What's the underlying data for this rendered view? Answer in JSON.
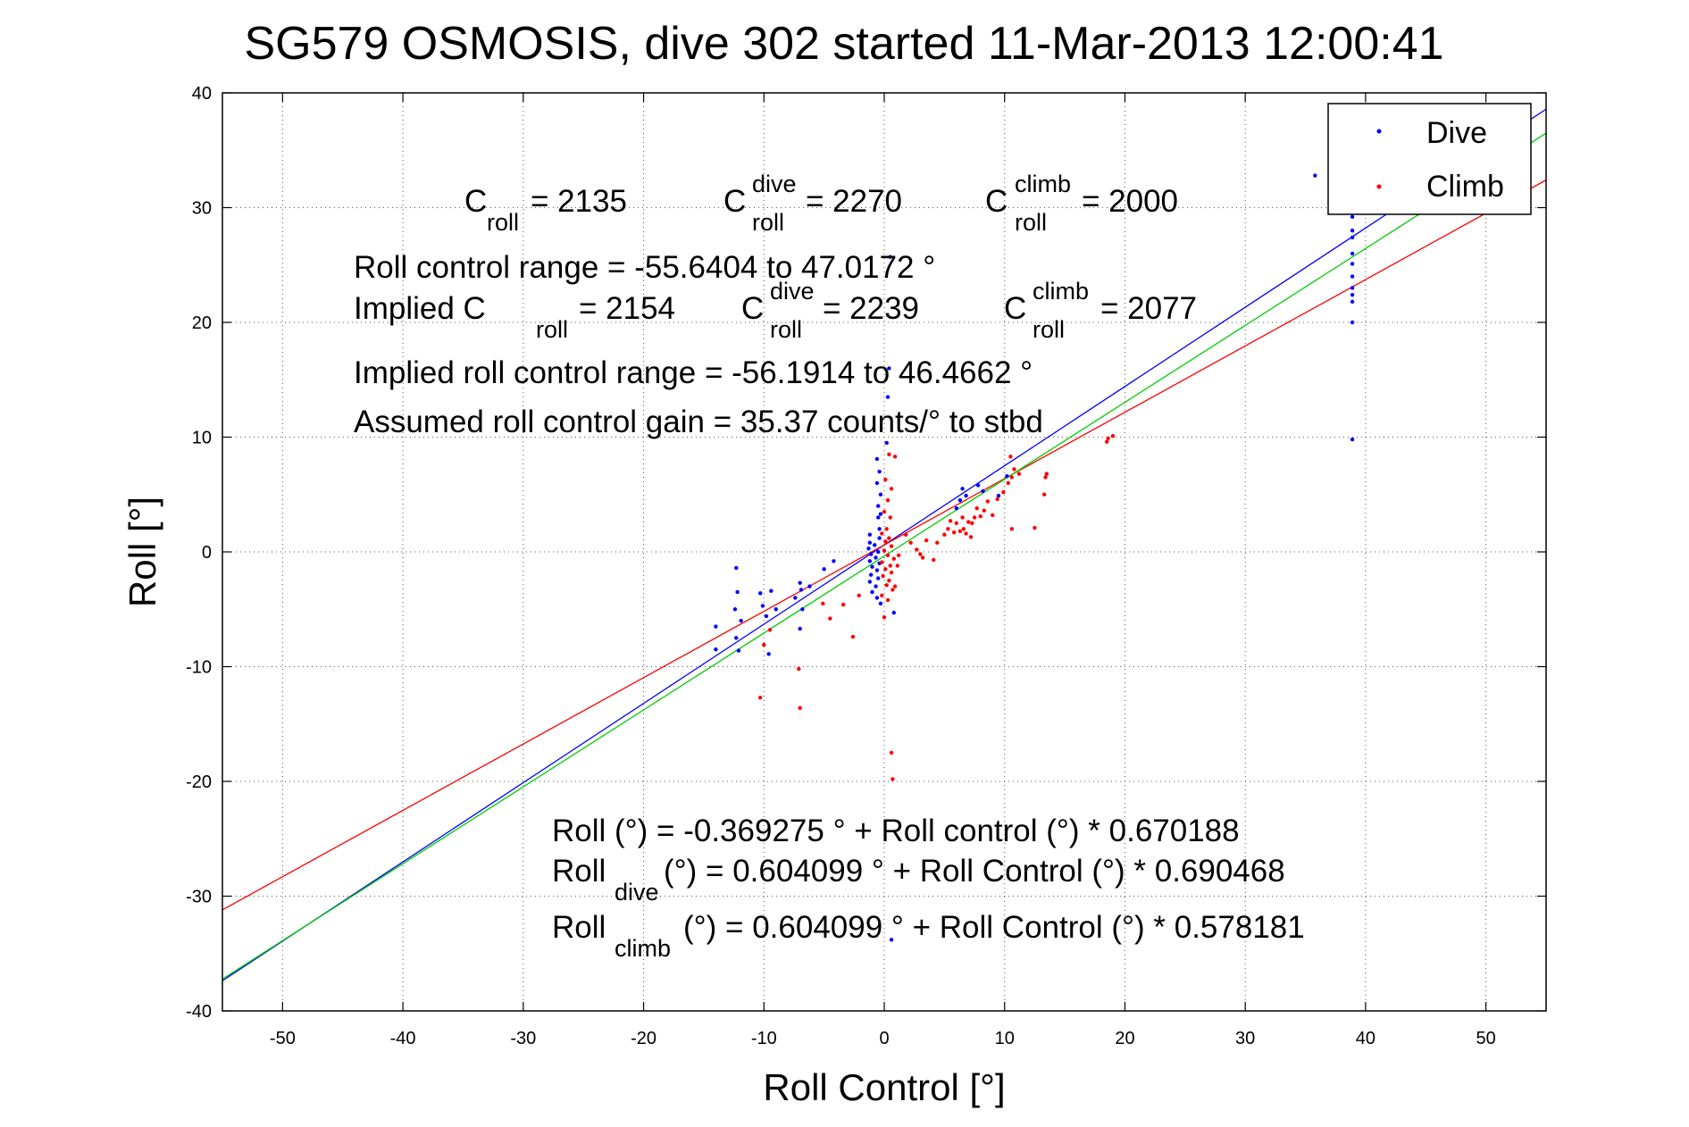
{
  "chart_data": {
    "type": "scatter",
    "title": "SG579 OSMOSIS, dive 302 started 11-Mar-2013 12:00:41",
    "xlabel": "Roll Control [°]",
    "ylabel": "Roll [°]",
    "xlim": [
      -55,
      55
    ],
    "ylim": [
      -40,
      40
    ],
    "xticks": [
      -50,
      -40,
      -30,
      -20,
      -10,
      0,
      10,
      20,
      30,
      40,
      50
    ],
    "yticks": [
      -40,
      -30,
      -20,
      -10,
      0,
      10,
      20,
      30,
      40
    ],
    "grid": "dotted",
    "legend_placement": "top-right",
    "legend": [
      {
        "label": "Dive",
        "color": "#0000ff"
      },
      {
        "label": "Climb",
        "color": "#ff0000"
      }
    ],
    "series": [
      {
        "name": "Dive",
        "color": "#0000ff",
        "points": [
          [
            35.8,
            32.8
          ],
          [
            38.9,
            29.2
          ],
          [
            38.9,
            28.0
          ],
          [
            38.9,
            27.4
          ],
          [
            38.9,
            26.0
          ],
          [
            38.9,
            25.1
          ],
          [
            38.9,
            24.0
          ],
          [
            38.9,
            23.0
          ],
          [
            38.9,
            22.4
          ],
          [
            38.9,
            21.8
          ],
          [
            38.9,
            20.0
          ],
          [
            38.9,
            9.8
          ],
          [
            0.5,
            25.7
          ],
          [
            0.4,
            16.0
          ],
          [
            0.3,
            13.5
          ],
          [
            0.2,
            9.5
          ],
          [
            -0.6,
            8.1
          ],
          [
            -0.4,
            7.0
          ],
          [
            -0.6,
            6.0
          ],
          [
            -0.3,
            5.0
          ],
          [
            -0.5,
            4.0
          ],
          [
            -0.3,
            3.3
          ],
          [
            -0.5,
            3.0
          ],
          [
            -0.4,
            2.0
          ],
          [
            -1.2,
            1.5
          ],
          [
            -0.4,
            1.2
          ],
          [
            -1.2,
            0.8
          ],
          [
            -0.8,
            0.6
          ],
          [
            -1.3,
            0.3
          ],
          [
            -0.5,
            0.0
          ],
          [
            -1.1,
            -0.2
          ],
          [
            -0.7,
            -0.5
          ],
          [
            -1.2,
            -0.8
          ],
          [
            -0.4,
            -1.0
          ],
          [
            -1.0,
            -1.3
          ],
          [
            -0.6,
            -1.6
          ],
          [
            -1.1,
            -2.0
          ],
          [
            -0.5,
            -2.3
          ],
          [
            -1.2,
            -2.6
          ],
          [
            -0.7,
            -3.0
          ],
          [
            -1.0,
            -3.5
          ],
          [
            -0.6,
            -4.0
          ],
          [
            -0.3,
            -4.5
          ],
          [
            0.8,
            -5.3
          ],
          [
            -12.3,
            -1.4
          ],
          [
            -12.2,
            -3.5
          ],
          [
            -12.4,
            -5.0
          ],
          [
            -11.9,
            -6.0
          ],
          [
            -12.3,
            -7.5
          ],
          [
            -12.1,
            -8.6
          ],
          [
            -14.0,
            -6.5
          ],
          [
            -14.0,
            -8.5
          ],
          [
            -10.3,
            -3.6
          ],
          [
            -10.1,
            -4.7
          ],
          [
            -9.8,
            -5.6
          ],
          [
            -9.4,
            -3.4
          ],
          [
            -9.0,
            -5.0
          ],
          [
            -9.6,
            -8.9
          ],
          [
            -7.0,
            -2.7
          ],
          [
            -6.9,
            -3.3
          ],
          [
            -7.4,
            -4.0
          ],
          [
            -6.8,
            -5.0
          ],
          [
            -7.0,
            -6.7
          ],
          [
            -5.0,
            -1.5
          ],
          [
            -4.2,
            -0.8
          ],
          [
            -6.2,
            -3.0
          ],
          [
            0.6,
            -33.8
          ],
          [
            6.5,
            5.5
          ],
          [
            6.8,
            4.9
          ],
          [
            6.3,
            4.5
          ],
          [
            7.8,
            5.8
          ],
          [
            8.2,
            5.3
          ],
          [
            6.0,
            3.8
          ],
          [
            10.2,
            6.6
          ],
          [
            9.5,
            4.9
          ]
        ]
      },
      {
        "name": "Climb",
        "color": "#ff0000",
        "points": [
          [
            0.4,
            8.5
          ],
          [
            0.9,
            8.3
          ],
          [
            0.1,
            6.3
          ],
          [
            0.6,
            5.5
          ],
          [
            0.3,
            4.5
          ],
          [
            0.0,
            3.5
          ],
          [
            0.5,
            3.0
          ],
          [
            0.2,
            2.0
          ],
          [
            -0.2,
            1.6
          ],
          [
            0.4,
            1.2
          ],
          [
            0.1,
            0.9
          ],
          [
            0.6,
            0.5
          ],
          [
            0.0,
            0.1
          ],
          [
            0.3,
            -0.3
          ],
          [
            0.8,
            -0.6
          ],
          [
            -0.2,
            -0.9
          ],
          [
            0.5,
            -1.2
          ],
          [
            0.1,
            -1.5
          ],
          [
            0.6,
            -1.8
          ],
          [
            -0.1,
            -2.1
          ],
          [
            0.4,
            -2.5
          ],
          [
            0.2,
            -2.9
          ],
          [
            0.7,
            -3.3
          ],
          [
            -0.2,
            -3.8
          ],
          [
            0.3,
            -4.2
          ],
          [
            0.9,
            -3.0
          ],
          [
            1.1,
            -1.2
          ],
          [
            1.2,
            -0.3
          ],
          [
            0.0,
            -5.7
          ],
          [
            0.6,
            -17.5
          ],
          [
            0.7,
            -19.8
          ],
          [
            2.2,
            0.8
          ],
          [
            2.7,
            0.2
          ],
          [
            3.2,
            -0.5
          ],
          [
            3.5,
            1.0
          ],
          [
            1.8,
            1.5
          ],
          [
            4.1,
            -0.7
          ],
          [
            3.0,
            -0.2
          ],
          [
            4.4,
            0.8
          ],
          [
            5.0,
            1.5
          ],
          [
            5.3,
            2.0
          ],
          [
            5.5,
            2.7
          ],
          [
            5.8,
            1.7
          ],
          [
            6.0,
            2.5
          ],
          [
            6.3,
            1.8
          ],
          [
            6.5,
            3.0
          ],
          [
            6.6,
            2.0
          ],
          [
            6.8,
            1.6
          ],
          [
            7.0,
            2.6
          ],
          [
            7.2,
            1.3
          ],
          [
            7.3,
            2.5
          ],
          [
            7.5,
            3.0
          ],
          [
            7.7,
            3.8
          ],
          [
            8.0,
            3.1
          ],
          [
            8.3,
            3.6
          ],
          [
            8.6,
            4.4
          ],
          [
            9.0,
            3.2
          ],
          [
            9.4,
            4.6
          ],
          [
            9.9,
            5.2
          ],
          [
            10.3,
            6.0
          ],
          [
            10.6,
            6.5
          ],
          [
            10.8,
            7.2
          ],
          [
            10.5,
            8.3
          ],
          [
            11.2,
            6.8
          ],
          [
            12.5,
            2.1
          ],
          [
            10.6,
            2.0
          ],
          [
            13.3,
            5.0
          ],
          [
            13.5,
            6.8
          ],
          [
            13.4,
            6.5
          ],
          [
            18.5,
            9.6
          ],
          [
            18.6,
            9.9
          ],
          [
            19.0,
            10.1
          ],
          [
            -2.1,
            -3.8
          ],
          [
            -3.4,
            -4.6
          ],
          [
            -4.5,
            -5.8
          ],
          [
            -2.6,
            -7.4
          ],
          [
            -7.1,
            -10.2
          ],
          [
            -7.0,
            -13.6
          ],
          [
            -10.3,
            -12.7
          ],
          [
            -10.0,
            -8.1
          ],
          [
            -9.5,
            -6.8
          ],
          [
            -5.1,
            -4.5
          ]
        ]
      }
    ],
    "fit_lines": [
      {
        "color": "#0000ff",
        "intercept": 0.604099,
        "slope": 0.690468
      },
      {
        "color": "#ff0000",
        "intercept": 0.604099,
        "slope": 0.578181
      },
      {
        "color": "#00cc00",
        "intercept": -0.369275,
        "slope": 0.670188
      }
    ]
  },
  "annotations": {
    "c_roll": {
      "main": "C",
      "sub": "roll",
      "value": " = 2135"
    },
    "c_roll_dive": {
      "main": "C",
      "sup": "dive",
      "sub": "roll",
      "value": " = 2270"
    },
    "c_roll_climb": {
      "main": "C",
      "sup": "climb",
      "sub": "roll",
      "value": " = 2000"
    },
    "range_line": "Roll control range = -55.6404 to 47.0172 °",
    "implied_prefix": "Implied C",
    "implied_sub": "roll",
    "implied_value": " = 2154",
    "implied_dive": {
      "main": "C",
      "sup": "dive",
      "sub": "roll",
      "value": " = 2239"
    },
    "implied_climb": {
      "main": "C",
      "sup": "climb",
      "sub": "roll",
      "value": " = 2077"
    },
    "implied_range_line": "Implied roll control range = -56.1914 to 46.4662 °",
    "gain_line": "Assumed roll control gain = 35.37 counts/° to stbd",
    "eq_all": "Roll (°) = -0.369275 ° + Roll control (°) * 0.670188",
    "eq_dive_main": "Roll",
    "eq_dive_sub": "dive",
    "eq_dive_rest": " (°) = 0.604099 ° + Roll Control (°) * 0.690468",
    "eq_climb_main": "Roll",
    "eq_climb_sub": "climb",
    "eq_climb_rest": " (°) = 0.604099 ° + Roll Control (°) * 0.578181"
  }
}
